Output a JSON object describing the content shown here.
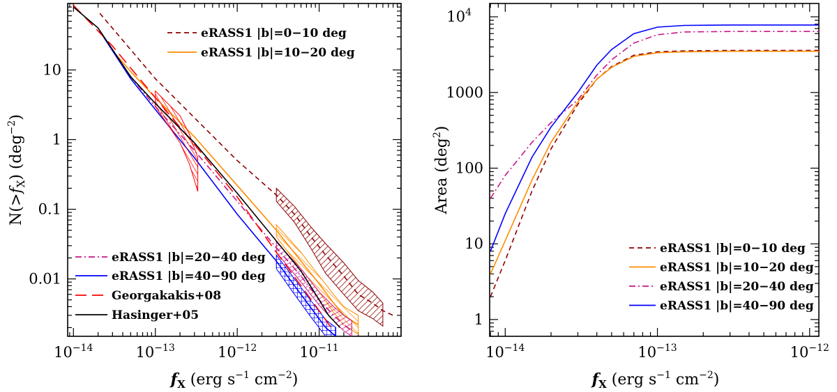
{
  "chart_data": [
    {
      "type": "line",
      "xscale": "log",
      "yscale": "log",
      "xlim": [
        8.5e-15,
        1e-10
      ],
      "ylim": [
        0.0015,
        90
      ],
      "xlabel": "f_X (erg s^-1 cm^-2)",
      "ylabel": "N(>f_X) (deg^-2)",
      "xticks": [
        {
          "v": 1e-14,
          "label": "10",
          "exp": "−14"
        },
        {
          "v": 1e-13,
          "label": "10",
          "exp": "−13"
        },
        {
          "v": 1e-12,
          "label": "10",
          "exp": "−12"
        },
        {
          "v": 1e-11,
          "label": "10",
          "exp": "−11"
        }
      ],
      "yticks": [
        {
          "v": 10,
          "label": "10"
        },
        {
          "v": 1,
          "label": "1"
        },
        {
          "v": 0.1,
          "label": "0.1"
        },
        {
          "v": 0.01,
          "label": "0.01"
        }
      ],
      "legend_top": [
        "eRASS1  |b|=0−10 deg",
        "eRASS1  |b|=10−20 deg"
      ],
      "legend_bottom": [
        "eRASS1  |b|=20−40 deg",
        "eRASS1  |b|=40−90 deg",
        "Georgakakis+08",
        "Hasinger+05"
      ],
      "series": [
        {
          "name": "eRASS1 |b|=0-10 deg",
          "color": "#8b0000",
          "dash": "7,5",
          "width": 1.6,
          "x": [
            2.1e-14,
            1e-13,
            1e-12,
            3e-12,
            5e-12,
            8e-12,
            1.2e-11,
            2e-11,
            3e-11,
            4.5e-11,
            6e-11,
            8e-11
          ],
          "y": [
            65,
            7.5,
            0.5,
            0.16,
            0.085,
            0.04,
            0.022,
            0.011,
            0.006,
            0.0045,
            0.0035,
            0.003
          ],
          "band": {
            "lo": [
              0.13,
              0.065,
              0.027,
              0.012,
              0.006,
              0.0035,
              0.0027,
              0.0021
            ],
            "hi": [
              0.2,
              0.11,
              0.055,
              0.032,
              0.017,
              0.0095,
              0.0065,
              0.0045
            ],
            "start": 3
          }
        },
        {
          "name": "eRASS1 |b|=10-20 deg",
          "color": "#ff8c00",
          "dash": "",
          "width": 1.6,
          "x": [
            2.1e-14,
            3e-14,
            5e-14,
            1e-13,
            3e-13,
            1e-12,
            3e-12,
            6e-12,
            1e-11,
            1.5e-11,
            2e-11,
            3e-11
          ],
          "y": [
            36,
            19,
            9.5,
            4,
            1.1,
            0.22,
            0.05,
            0.018,
            0.0085,
            0.0045,
            0.003,
            0.0022
          ],
          "band": {
            "lo": [
              0.04,
              0.014,
              0.0065,
              0.0033,
              0.0022,
              0.0016
            ],
            "hi": [
              0.06,
              0.024,
              0.011,
              0.006,
              0.004,
              0.003
            ],
            "start": 6
          }
        },
        {
          "name": "eRASS1 |b|=20-40 deg",
          "color": "#c71585",
          "dash": "9,4,2,4",
          "width": 1.6,
          "x": [
            2.1e-14,
            5e-14,
            1e-13,
            3e-13,
            1e-12,
            3e-12,
            6e-12,
            1e-11,
            1.5e-11,
            2e-11,
            2.5e-11
          ],
          "y": [
            36,
            8,
            3,
            0.7,
            0.13,
            0.028,
            0.011,
            0.005,
            0.003,
            0.0022,
            0.0018
          ],
          "band": {
            "lo": [
              0.024,
              0.009,
              0.0042,
              0.0025,
              0.0018,
              0.0015
            ],
            "hi": [
              0.034,
              0.014,
              0.0065,
              0.004,
              0.003,
              0.0025
            ],
            "start": 5
          }
        },
        {
          "name": "eRASS1 |b|=40-90 deg",
          "color": "#0000ff",
          "dash": "",
          "width": 1.6,
          "x": [
            2.1e-14,
            5e-14,
            1e-13,
            3e-13,
            1e-12,
            3e-12,
            5e-12,
            8e-12,
            1.2e-11,
            1.6e-11
          ],
          "y": [
            36,
            7.5,
            2.7,
            0.55,
            0.085,
            0.018,
            0.008,
            0.0038,
            0.002,
            0.0015
          ],
          "band": {
            "lo": [
              0.014,
              0.006,
              0.0028,
              0.0015,
              0.0012
            ],
            "hi": [
              0.022,
              0.01,
              0.0048,
              0.0026,
              0.002
            ],
            "start": 5
          }
        },
        {
          "name": "Georgakakis+08",
          "color": "#ff0000",
          "dash": "16,8",
          "width": 1.6,
          "x": [
            1e-14,
            3e-14,
            1e-13,
            3e-13,
            1e-12,
            3e-12,
            6e-12,
            1e-11,
            1.4e-11
          ],
          "y": [
            85,
            22,
            4,
            0.85,
            0.15,
            0.024,
            0.008,
            0.0035,
            0.002
          ],
          "band": {
            "lo": [
              3,
              0.9,
              0.45,
              0.18
            ],
            "hi": [
              5,
              2.2,
              1.2,
              0.55
            ],
            "x": [
              1e-13,
              2e-13,
              2.6e-13,
              3.3e-13
            ]
          }
        },
        {
          "name": "Hasinger+05",
          "color": "#000000",
          "dash": "",
          "width": 1.6,
          "x": [
            1e-14,
            2e-14,
            5e-14,
            1e-13,
            3e-13,
            1e-12,
            3e-12,
            6e-12,
            1e-11,
            1.3e-11,
            1.8e-11
          ],
          "y": [
            80,
            40,
            8,
            3.3,
            0.9,
            0.17,
            0.035,
            0.013,
            0.005,
            0.003,
            0.002
          ]
        }
      ]
    },
    {
      "type": "line",
      "xscale": "log",
      "yscale": "log",
      "xlim": [
        7.9e-15,
        1.15e-12
      ],
      "ylim": [
        0.6,
        15000
      ],
      "xlabel": "f_X (erg s^-1 cm^-2)",
      "ylabel": "Area (deg^2)",
      "xticks": [
        {
          "v": 1e-14,
          "label": "10",
          "exp": "−14"
        },
        {
          "v": 1e-13,
          "label": "10",
          "exp": "−13"
        },
        {
          "v": 1e-12,
          "label": "10",
          "exp": "−12"
        }
      ],
      "yticks": [
        {
          "v": 10000,
          "label": "10",
          "exp": "4"
        },
        {
          "v": 1000,
          "label": "1000"
        },
        {
          "v": 100,
          "label": "100"
        },
        {
          "v": 10,
          "label": "10"
        },
        {
          "v": 1,
          "label": "1"
        }
      ],
      "legend": [
        "eRASS1  |b|=0−10 deg",
        "eRASS1  |b|=10−20 deg",
        "eRASS1  |b|=20−40 deg",
        "eRASS1  |b|=40−90 deg"
      ],
      "series": [
        {
          "name": "eRASS1 |b|=0-10 deg",
          "color": "#8b0000",
          "dash": "7,5",
          "width": 1.6,
          "x": [
            8e-15,
            1e-14,
            1.5e-14,
            2e-14,
            3e-14,
            4e-14,
            5e-14,
            7e-14,
            1e-13,
            1.5e-13,
            3e-13,
            1.15e-12
          ],
          "y": [
            2,
            6,
            50,
            180,
            700,
            1500,
            2200,
            3100,
            3450,
            3550,
            3600,
            3600
          ]
        },
        {
          "name": "eRASS1 |b|=10-20 deg",
          "color": "#ff8c00",
          "dash": "",
          "width": 1.6,
          "x": [
            8e-15,
            1e-14,
            1.5e-14,
            2e-14,
            3e-14,
            4e-14,
            5e-14,
            7e-14,
            1e-13,
            1.5e-13,
            3e-13,
            1.15e-12
          ],
          "y": [
            4,
            11,
            70,
            220,
            750,
            1500,
            2150,
            3000,
            3350,
            3450,
            3500,
            3500
          ]
        },
        {
          "name": "eRASS1 |b|=20-40 deg",
          "color": "#c71585",
          "dash": "9,4,2,4",
          "width": 1.6,
          "x": [
            8e-15,
            1e-14,
            1.5e-14,
            2e-14,
            3e-14,
            4e-14,
            5e-14,
            7e-14,
            1e-13,
            1.5e-13,
            3e-13,
            1.15e-12
          ],
          "y": [
            40,
            80,
            220,
            400,
            800,
            1700,
            2700,
            4500,
            5800,
            6300,
            6400,
            6400
          ]
        },
        {
          "name": "eRASS1 |b|=40-90 deg",
          "color": "#0000ff",
          "dash": "",
          "width": 1.6,
          "x": [
            8e-15,
            1e-14,
            1.5e-14,
            2e-14,
            3e-14,
            4e-14,
            5e-14,
            7e-14,
            1e-13,
            1.5e-13,
            3e-13,
            1.15e-12
          ],
          "y": [
            8,
            25,
            140,
            350,
            1000,
            2300,
            3700,
            6000,
            7300,
            7700,
            7800,
            7800
          ]
        }
      ]
    }
  ]
}
